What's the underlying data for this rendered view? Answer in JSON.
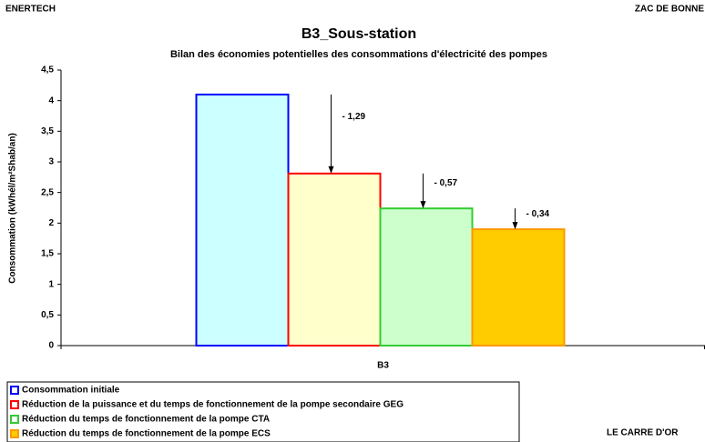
{
  "header": {
    "left": "ENERTECH",
    "right": "ZAC DE BONNE"
  },
  "footer": {
    "right": "LE CARRE D'OR"
  },
  "chart_data": {
    "type": "bar",
    "title": "B3_Sous-station",
    "subtitle": "Bilan des économies potentielles des consommations d'électricité des pompes",
    "y_label": "Consommation (kWhél/m²Shab/an)",
    "categories": [
      "B3"
    ],
    "series": [
      {
        "name": "Consommation initiale",
        "color": "#0000ff",
        "fill": "#ccffff",
        "values": [
          4.1
        ]
      },
      {
        "name": "Réduction de la puissance et du temps de fonctionnement de la pompe secondaire GEG",
        "color": "#ff0000",
        "fill": "#ffffcc",
        "values": [
          2.81
        ]
      },
      {
        "name": "Réduction du temps de fonctionnement de la pompe CTA",
        "color": "#33cc33",
        "fill": "#ccffcc",
        "values": [
          2.24
        ]
      },
      {
        "name": "Réduction du temps de fonctionnement de la pompe ECS",
        "color": "#ff9900",
        "fill": "#ffcc00",
        "values": [
          1.9
        ]
      }
    ],
    "annotations": [
      "- 1,29",
      "- 0,57",
      "- 0,34"
    ],
    "ylim": [
      0,
      4.5
    ],
    "yticks": [
      0,
      {
        "value": 0.5,
        "label": "0,5"
      },
      1,
      {
        "value": 1.5,
        "label": "1,5"
      },
      2,
      {
        "value": 2.5,
        "label": "2,5"
      },
      3,
      {
        "value": 3.5,
        "label": "3,5"
      },
      4,
      {
        "value": 4.5,
        "label": "4,5"
      }
    ],
    "legend": "bottom-left"
  }
}
